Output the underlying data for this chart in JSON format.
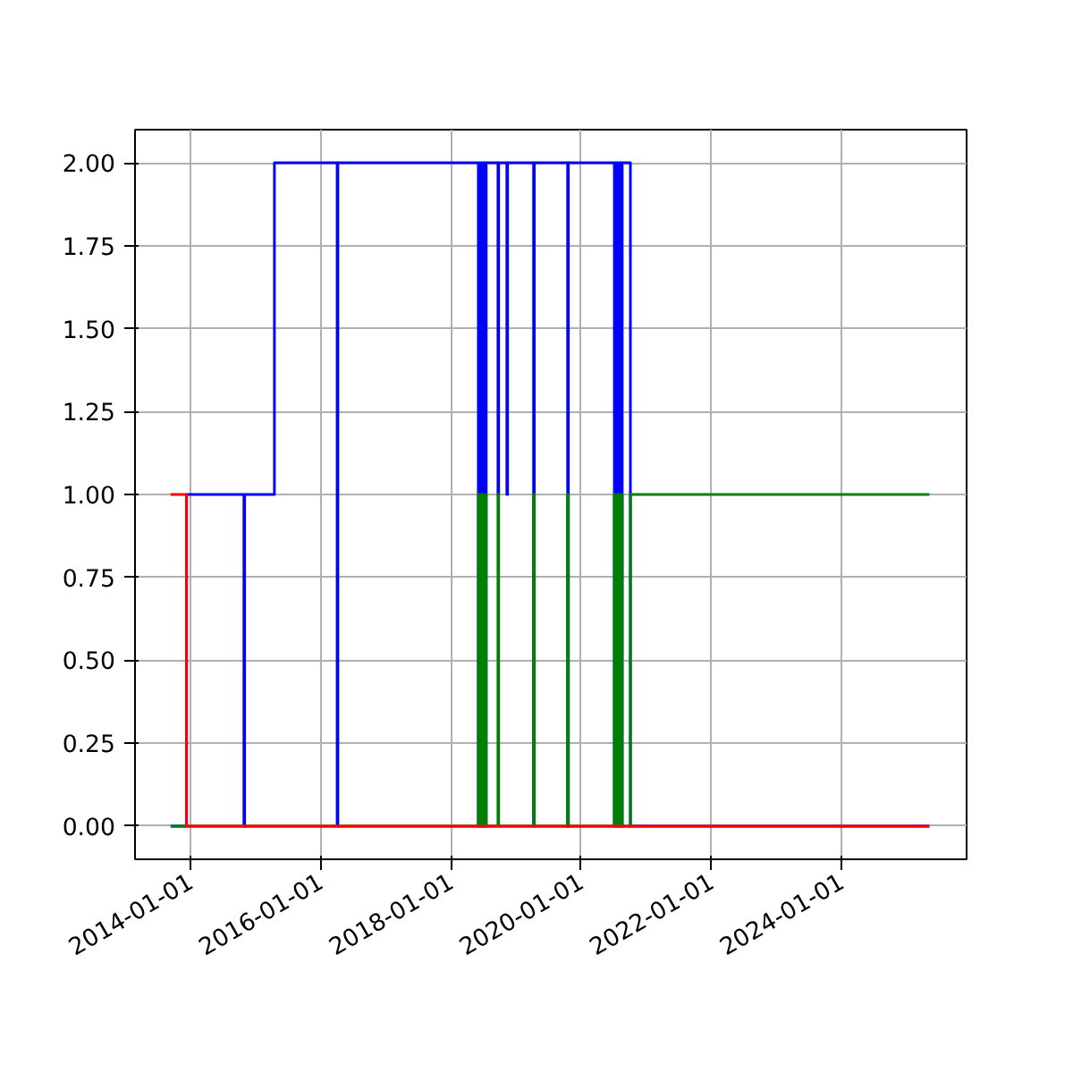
{
  "chart_data": {
    "type": "step",
    "grid": true,
    "marker": "none",
    "line_style": "solid",
    "xlim": [
      "2013-02-24",
      "2025-12-03"
    ],
    "xticks": [
      "2014-01-01",
      "2016-01-01",
      "2018-01-01",
      "2020-01-01",
      "2022-01-01",
      "2024-01-01"
    ],
    "ylim": [
      -0.1,
      2.1
    ],
    "yticks": [
      {
        "value": 0,
        "label": "0.00"
      },
      {
        "value": 0.25,
        "label": "0.25"
      },
      {
        "value": 0.5,
        "label": "0.50"
      },
      {
        "value": 0.75,
        "label": "0.75"
      },
      {
        "value": 1,
        "label": "1.00"
      },
      {
        "value": 1.25,
        "label": "1.25"
      },
      {
        "value": 1.5,
        "label": "1.50"
      },
      {
        "value": 1.75,
        "label": "1.75"
      },
      {
        "value": 2,
        "label": "2.00"
      }
    ],
    "series": [
      {
        "color": "#0000ff",
        "x": [
          "2013-09-12",
          "2013-12-10",
          "2014-10-28",
          "2014-11-01",
          "2015-04-17",
          "2016-04-03",
          "2016-04-07",
          "2018-06-04",
          "2018-06-10",
          "2018-06-24",
          "2018-06-30",
          "2018-07-14",
          "2018-07-18",
          "2018-09-22",
          "2018-09-26",
          "2018-11-11",
          "2018-11-15",
          "2019-04-10",
          "2019-04-14",
          "2019-10-18",
          "2019-10-22",
          "2020-07-06",
          "2020-07-12",
          "2020-07-26",
          "2020-08-01",
          "2020-08-15",
          "2020-08-19",
          "2020-10-04",
          "2025-05-08"
        ],
        "values": [
          0,
          1,
          0,
          1,
          2,
          0,
          2,
          0,
          2,
          0,
          2,
          0,
          2,
          1,
          2,
          1,
          2,
          0,
          2,
          0,
          2,
          0,
          2,
          0,
          2,
          0,
          2,
          0,
          0
        ]
      },
      {
        "color": "#008000",
        "x": [
          "2013-09-12",
          "2018-06-04",
          "2018-06-10",
          "2018-06-24",
          "2018-06-30",
          "2018-07-14",
          "2018-07-18",
          "2018-09-22",
          "2018-09-26",
          "2019-04-10",
          "2019-04-14",
          "2019-10-18",
          "2019-10-22",
          "2020-07-06",
          "2020-07-12",
          "2020-07-26",
          "2020-08-01",
          "2020-08-15",
          "2020-08-19",
          "2020-10-04",
          "2025-05-08"
        ],
        "values": [
          0,
          1,
          0,
          1,
          0,
          1,
          0,
          1,
          0,
          1,
          0,
          1,
          0,
          1,
          0,
          1,
          0,
          1,
          0,
          1,
          1
        ]
      },
      {
        "color": "#ff0000",
        "x": [
          "2013-09-12",
          "2013-12-10",
          "2025-05-08"
        ],
        "values": [
          1,
          0,
          0
        ]
      }
    ]
  }
}
